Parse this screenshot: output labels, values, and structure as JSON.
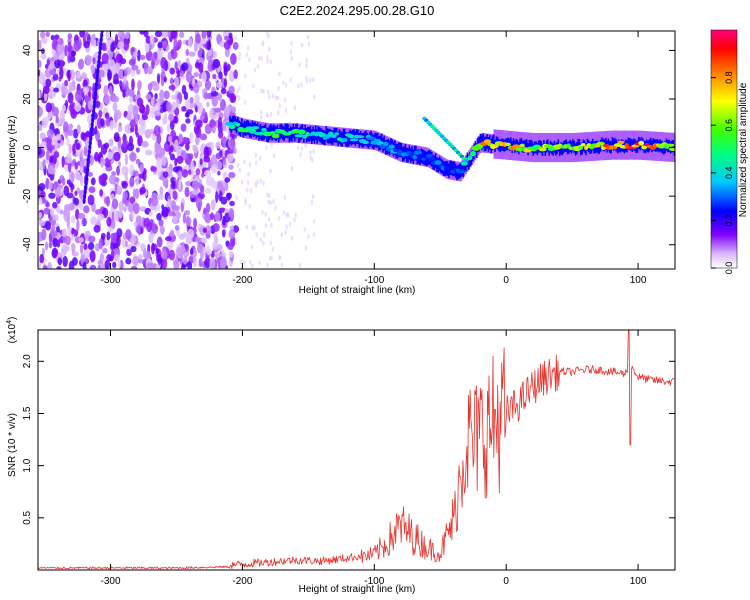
{
  "title": "C2E2.2024.295.00.28.G10",
  "chart_data": [
    {
      "type": "heatmap",
      "xlabel": "Height of straight line (km)",
      "ylabel": "Frequency (Hz)",
      "xlim": [
        -355,
        128
      ],
      "ylim": [
        -50,
        48
      ],
      "xticks": [
        -300,
        -200,
        -100,
        0,
        100
      ],
      "yticks": [
        -40,
        -20,
        0,
        20,
        40
      ],
      "colorbar": {
        "label": "Normalized spectral amplitude",
        "range": [
          0,
          1
        ],
        "ticks": [
          "0.0",
          "0.2",
          "0.4",
          "0.6",
          "0.8"
        ],
        "colors": [
          "#ffffff",
          "#8000ff",
          "#0000ff",
          "#00ffff",
          "#00ff00",
          "#ffff00",
          "#ff8000",
          "#ff0000",
          "#ff0080"
        ]
      },
      "noise_region_x": [
        -355,
        -205
      ],
      "ridge": {
        "x": [
          -210,
          -200,
          -180,
          -160,
          -140,
          -120,
          -100,
          -80,
          -60,
          -45,
          -35,
          -20,
          0,
          20,
          50,
          80,
          100,
          128
        ],
        "freq": [
          10,
          8,
          6,
          6,
          5,
          4,
          3,
          -2,
          -4,
          -9,
          -10,
          2,
          1,
          0,
          0,
          1,
          1,
          0
        ],
        "amplitude": [
          0.45,
          0.5,
          0.55,
          0.5,
          0.45,
          0.4,
          0.35,
          0.35,
          0.3,
          0.3,
          0.3,
          0.8,
          0.8,
          0.65,
          0.6,
          0.85,
          0.95,
          0.6
        ]
      },
      "grid": false
    },
    {
      "type": "line",
      "xlabel": "Height of straight line (km)",
      "ylabel": "SNR (10 * v/v)",
      "y_multiplier": "(x10^4)",
      "xlim": [
        -355,
        128
      ],
      "ylim": [
        0,
        2.3
      ],
      "xticks": [
        -300,
        -200,
        -100,
        0,
        100
      ],
      "yticks": [
        0.5,
        1.0,
        1.5,
        2.0
      ],
      "ytick_labels": [
        "0.5",
        "1.0",
        "1.5",
        "2.0"
      ],
      "color": "#e8322c",
      "series": [
        {
          "x": [
            -355,
            -300,
            -250,
            -210,
            -200,
            -180,
            -160,
            -140,
            -120,
            -100,
            -90,
            -80,
            -70,
            -60,
            -50,
            -40,
            -35,
            -30,
            -25,
            -20,
            -15,
            -10,
            0,
            10,
            20,
            30,
            40,
            50,
            60,
            70,
            80,
            90,
            95,
            100,
            110,
            128
          ],
          "values": [
            0.02,
            0.02,
            0.02,
            0.03,
            0.04,
            0.06,
            0.08,
            0.07,
            0.1,
            0.14,
            0.25,
            0.4,
            0.3,
            0.2,
            0.15,
            0.45,
            0.9,
            1.3,
            1.2,
            1.3,
            1.35,
            1.4,
            1.5,
            1.6,
            1.75,
            1.85,
            1.9,
            1.9,
            1.92,
            1.92,
            1.9,
            1.88,
            1.95,
            1.85,
            1.82,
            1.8
          ]
        }
      ],
      "grid": false
    }
  ]
}
